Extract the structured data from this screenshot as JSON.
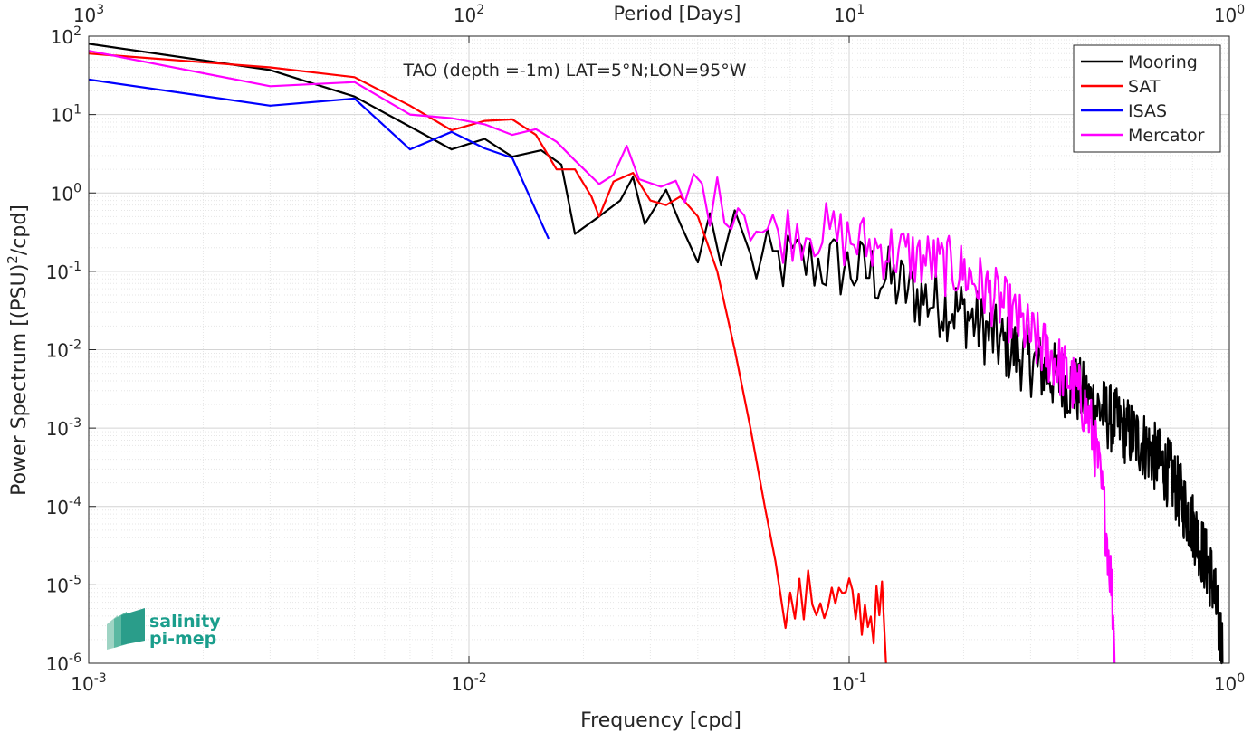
{
  "chart_data": {
    "type": "line",
    "title": "TAO (depth =-1m) LAT=5°N;LON=95°W",
    "xlabel": "Frequency [cpd]",
    "ylabel_main": "Power Spectrum [(PSU)",
    "ylabel_sup": "2",
    "ylabel_tail": "/cpd]",
    "top_axis_label": "Period [Days]",
    "x_scale": "log",
    "y_scale": "log",
    "xlim": [
      0.001,
      1
    ],
    "ylim": [
      1e-06,
      100
    ],
    "grid": true,
    "legend_position": "top-right",
    "x_ticks": [
      {
        "value": 0.001,
        "base": "10",
        "exp": "-3"
      },
      {
        "value": 0.01,
        "base": "10",
        "exp": "-2"
      },
      {
        "value": 0.1,
        "base": "10",
        "exp": "-1"
      },
      {
        "value": 1,
        "base": "10",
        "exp": "0"
      }
    ],
    "top_ticks": [
      {
        "freq": 0.001,
        "base": "10",
        "exp": "3"
      },
      {
        "freq": 0.01,
        "base": "10",
        "exp": "2"
      },
      {
        "freq": 0.1,
        "base": "10",
        "exp": "1"
      },
      {
        "freq": 1,
        "base": "10",
        "exp": "0"
      }
    ],
    "y_ticks": [
      {
        "value": 100,
        "base": "10",
        "exp": "2"
      },
      {
        "value": 10,
        "base": "10",
        "exp": "1"
      },
      {
        "value": 1,
        "base": "10",
        "exp": "0"
      },
      {
        "value": 0.1,
        "base": "10",
        "exp": "-1"
      },
      {
        "value": 0.01,
        "base": "10",
        "exp": "-2"
      },
      {
        "value": 0.001,
        "base": "10",
        "exp": "-3"
      },
      {
        "value": 0.0001,
        "base": "10",
        "exp": "-4"
      },
      {
        "value": 1e-05,
        "base": "10",
        "exp": "-5"
      },
      {
        "value": 1e-06,
        "base": "10",
        "exp": "-6"
      }
    ],
    "series": [
      {
        "name": "Mooring",
        "color": "#000000",
        "anchors": [
          [
            0.001,
            80
          ],
          [
            0.003,
            37
          ],
          [
            0.005,
            17
          ],
          [
            0.007,
            7
          ],
          [
            0.009,
            3.6
          ],
          [
            0.011,
            4.9
          ],
          [
            0.013,
            2.9
          ],
          [
            0.0155,
            3.5
          ],
          [
            0.0175,
            2.3
          ],
          [
            0.019,
            0.3
          ],
          [
            0.022,
            0.5
          ],
          [
            0.025,
            0.8
          ],
          [
            0.027,
            1.6
          ],
          [
            0.029,
            0.4
          ],
          [
            0.033,
            1.1
          ],
          [
            0.036,
            0.4
          ],
          [
            0.04,
            0.13
          ],
          [
            0.043,
            0.55
          ],
          [
            0.046,
            0.12
          ],
          [
            0.05,
            0.6
          ],
          [
            0.055,
            0.12
          ],
          [
            0.07,
            0.13
          ],
          [
            0.09,
            0.12
          ],
          [
            0.12,
            0.09
          ],
          [
            0.15,
            0.05
          ],
          [
            0.2,
            0.03
          ],
          [
            0.25,
            0.012
          ],
          [
            0.3,
            0.007
          ],
          [
            0.4,
            0.003
          ],
          [
            0.5,
            0.0012
          ],
          [
            0.6,
            0.0006
          ],
          [
            0.7,
            0.00025
          ],
          [
            0.8,
            6e-05
          ],
          [
            0.9,
            1.2e-05
          ],
          [
            0.96,
            1.5e-06
          ]
        ],
        "anchors_end": 0.96,
        "noise_start": 0.055,
        "noise_amp": 0.45
      },
      {
        "name": "SAT",
        "color": "#ff0000",
        "anchors": [
          [
            0.001,
            60
          ],
          [
            0.003,
            40
          ],
          [
            0.005,
            30
          ],
          [
            0.007,
            13
          ],
          [
            0.009,
            6.3
          ],
          [
            0.011,
            8.3
          ],
          [
            0.013,
            8.7
          ],
          [
            0.015,
            5.5
          ],
          [
            0.017,
            2
          ],
          [
            0.019,
            2
          ],
          [
            0.021,
            0.9
          ],
          [
            0.022,
            0.5
          ],
          [
            0.024,
            1.4
          ],
          [
            0.027,
            1.8
          ],
          [
            0.03,
            0.8
          ],
          [
            0.033,
            0.7
          ],
          [
            0.036,
            0.9
          ],
          [
            0.04,
            0.5
          ],
          [
            0.045,
            0.1
          ],
          [
            0.05,
            0.01
          ],
          [
            0.055,
            0.001
          ],
          [
            0.06,
            0.0001
          ],
          [
            0.064,
            2e-05
          ],
          [
            0.068,
            7e-06
          ],
          [
            0.07,
            5e-06
          ],
          [
            0.08,
            7e-06
          ],
          [
            0.1,
            5.5e-06
          ],
          [
            0.12,
            4e-06
          ],
          [
            0.123,
            8e-06
          ]
        ],
        "noise_start": 0.068,
        "noise_amp": 0.4,
        "tail": [
          [
            0.125,
            1e-06
          ]
        ]
      },
      {
        "name": "ISAS",
        "color": "#0000ff",
        "anchors": [
          [
            0.001,
            28
          ],
          [
            0.003,
            13
          ],
          [
            0.005,
            16
          ],
          [
            0.007,
            3.6
          ],
          [
            0.009,
            6
          ],
          [
            0.011,
            3.7
          ],
          [
            0.013,
            2.8
          ],
          [
            0.0162,
            0.26
          ]
        ]
      },
      {
        "name": "Mercator",
        "color": "#ff00ff",
        "anchors": [
          [
            0.001,
            65
          ],
          [
            0.003,
            23
          ],
          [
            0.005,
            26
          ],
          [
            0.007,
            10
          ],
          [
            0.009,
            9
          ],
          [
            0.011,
            7.5
          ],
          [
            0.013,
            5.5
          ],
          [
            0.015,
            6.5
          ],
          [
            0.017,
            4.5
          ],
          [
            0.019,
            2.6
          ],
          [
            0.022,
            1.3
          ],
          [
            0.024,
            1.7
          ],
          [
            0.026,
            4
          ],
          [
            0.028,
            1.5
          ],
          [
            0.032,
            1.2
          ],
          [
            0.036,
            0.7
          ],
          [
            0.04,
            1.3
          ],
          [
            0.045,
            0.7
          ],
          [
            0.05,
            0.9
          ],
          [
            0.06,
            0.3
          ],
          [
            0.08,
            0.35
          ],
          [
            0.1,
            0.25
          ],
          [
            0.15,
            0.15
          ],
          [
            0.2,
            0.1
          ],
          [
            0.25,
            0.04
          ],
          [
            0.3,
            0.015
          ],
          [
            0.35,
            0.007
          ],
          [
            0.4,
            0.003
          ],
          [
            0.43,
            0.0012
          ],
          [
            0.45,
            0.0004
          ],
          [
            0.47,
            8e-05
          ],
          [
            0.49,
            1e-05
          ],
          [
            0.5,
            1.5e-06
          ]
        ],
        "noise_start": 0.035,
        "noise_amp": 0.4
      }
    ]
  },
  "logo": {
    "line1": "salinity",
    "line2": "pi-mep"
  }
}
